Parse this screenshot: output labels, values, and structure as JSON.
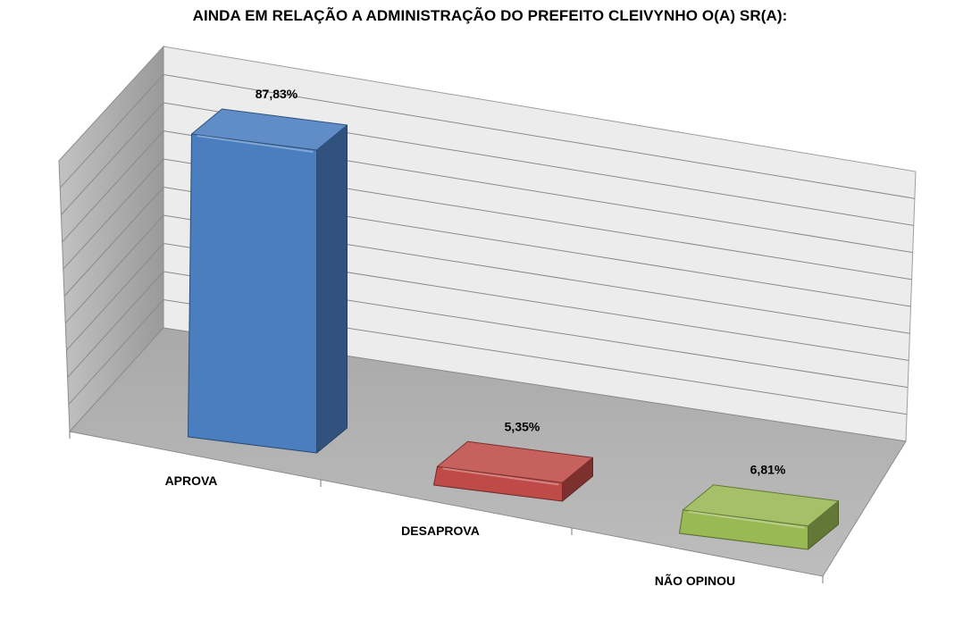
{
  "chart_data": {
    "type": "bar",
    "title": "AINDA EM RELAÇÃO A ADMINISTRAÇÃO DO PREFEITO CLEIVYNHO O(A) SR(A):",
    "categories": [
      "APROVA",
      "DESAPROVA",
      "NÃO OPINOU"
    ],
    "values": [
      87.83,
      5.35,
      6.81
    ],
    "data_labels": [
      "87,83%",
      "5,35%",
      "6,81%"
    ],
    "colors": [
      "#4a7ebf",
      "#be4b48",
      "#98b954"
    ],
    "ylim": [
      0,
      100
    ],
    "grid": true,
    "legend": "none",
    "style": "3d"
  }
}
